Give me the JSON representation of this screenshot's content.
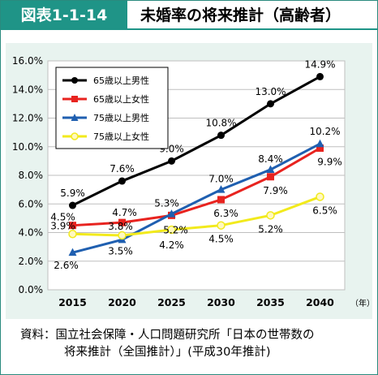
{
  "header": {
    "figure_number": "図表1-1-14",
    "title": "未婚率の将来推計（高齢者）"
  },
  "note": {
    "line1": "資料：国立社会保障・人口問題研究所「日本の世帯数の",
    "line2": "将来推計（全国推計）」(平成30年推計)"
  },
  "chart_data": {
    "type": "line",
    "categories": [
      "2015",
      "2020",
      "2025",
      "2030",
      "2035",
      "2040"
    ],
    "x_unit_label": "（年）",
    "ylim": [
      0,
      16
    ],
    "yticks": [
      "0.0%",
      "2.0%",
      "4.0%",
      "6.0%",
      "8.0%",
      "10.0%",
      "12.0%",
      "14.0%",
      "16.0%"
    ],
    "grid": "horizontal",
    "legend_position": "top-left",
    "series": [
      {
        "name": "65歳以上男性",
        "color": "#000000",
        "marker": "circle",
        "values": [
          5.9,
          7.6,
          9.0,
          10.8,
          13.0,
          14.9
        ],
        "labels": [
          "5.9%",
          "7.6%",
          "9.0%",
          "10.8%",
          "13.0%",
          "14.9%"
        ]
      },
      {
        "name": "65歳以上女性",
        "color": "#e8231f",
        "marker": "square",
        "values": [
          4.5,
          4.7,
          5.2,
          6.3,
          7.9,
          9.9
        ],
        "labels": [
          "4.5%",
          "4.7%",
          "5.2%",
          "6.3%",
          "7.9%",
          "9.9%"
        ]
      },
      {
        "name": "75歳以上男性",
        "color": "#1f5fb0",
        "marker": "triangle",
        "values": [
          2.6,
          3.5,
          5.3,
          7.0,
          8.4,
          10.2
        ],
        "labels": [
          "2.6%",
          "3.5%",
          "5.3%",
          "7.0%",
          "8.4%",
          "10.2%"
        ]
      },
      {
        "name": "75歳以上女性",
        "color": "#f2ea1c",
        "marker": "circle-open",
        "values": [
          3.9,
          3.8,
          4.2,
          4.5,
          5.2,
          6.5
        ],
        "labels": [
          "3.9%",
          "3.8%",
          "4.2%",
          "4.5%",
          "5.2%",
          "6.5%"
        ]
      }
    ]
  }
}
